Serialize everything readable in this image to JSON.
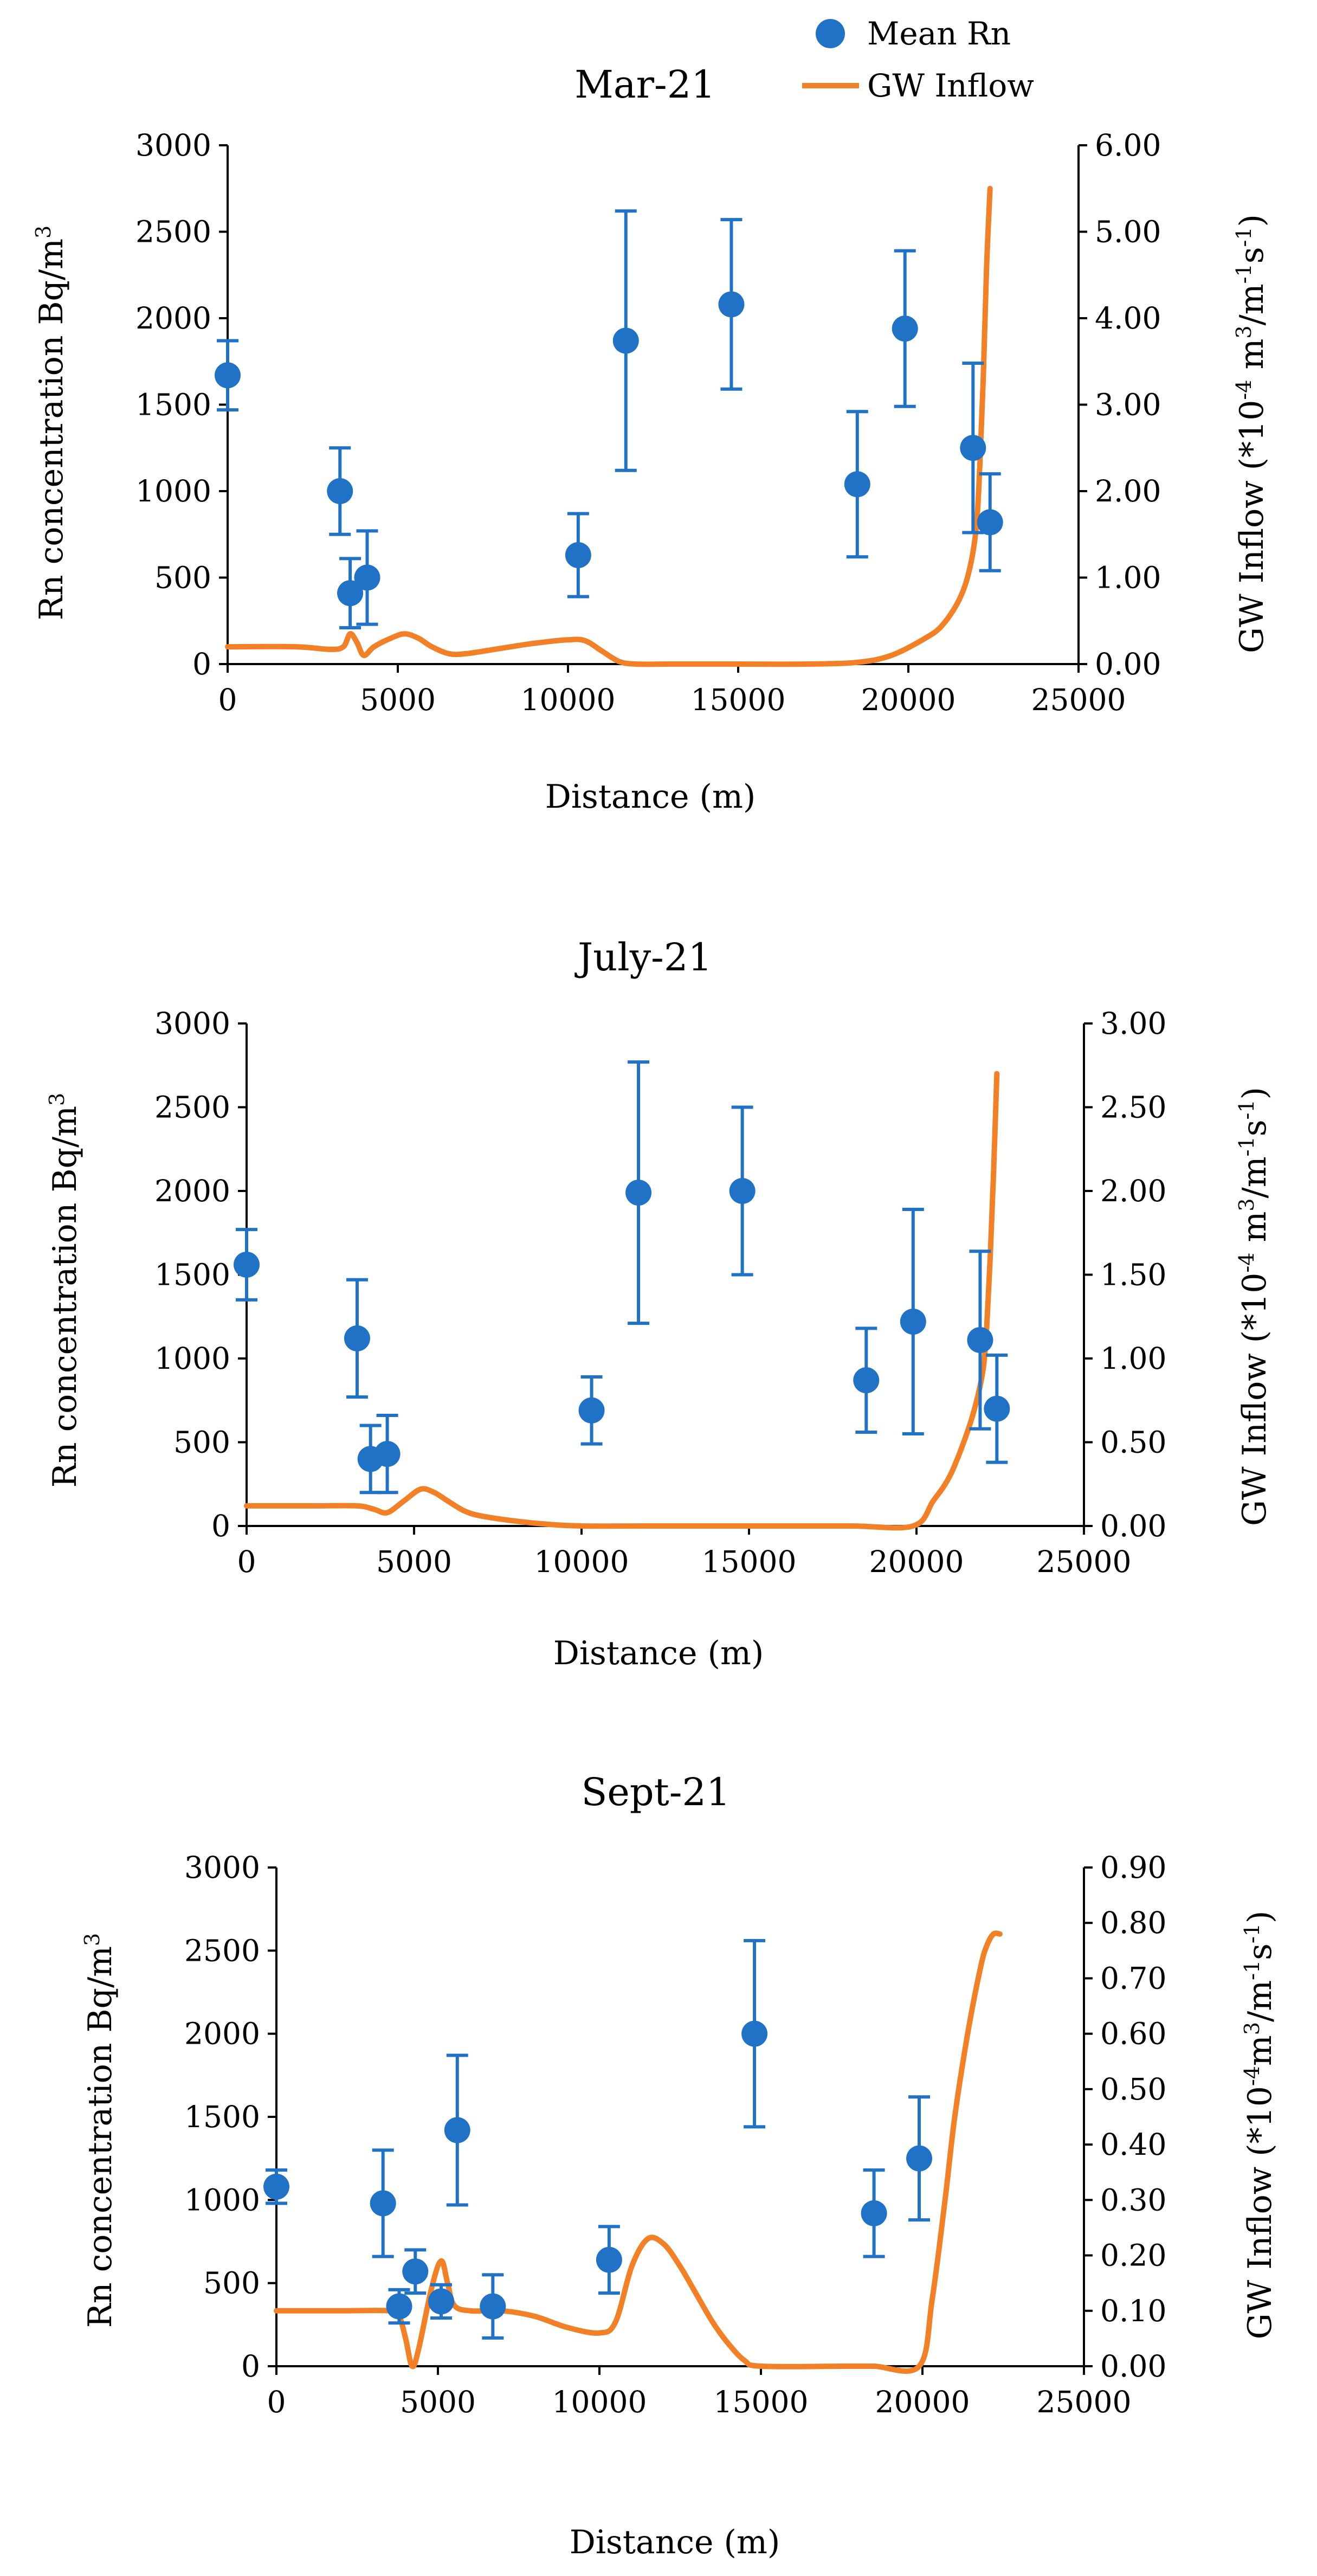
{
  "legend": {
    "mean_rn": "Mean Rn",
    "gw_inflow": "GW Inflow"
  },
  "colors": {
    "rn": "#1f72c6",
    "gw": "#f28027"
  },
  "chart_data": [
    {
      "type": "scatter",
      "title": "Mar-21",
      "xlabel": "Distance (m)",
      "ylabel": "Rn concentration Bq/m3",
      "y2label": "GW Inflow (*10-4 m3/m-1s-1)",
      "xlim": [
        0,
        25000
      ],
      "ylim": [
        0,
        3000
      ],
      "y2lim": [
        0,
        6
      ],
      "xticks": [
        "0",
        "5000",
        "10000",
        "15000",
        "20000",
        "25000"
      ],
      "yticks": [
        "0",
        "500",
        "1000",
        "1500",
        "2000",
        "2500",
        "3000"
      ],
      "y2ticks": [
        "0.00",
        "1.00",
        "2.00",
        "3.00",
        "4.00",
        "5.00",
        "6.00"
      ],
      "series": [
        {
          "name": "Mean Rn",
          "x": [
            0,
            3300,
            3600,
            4100,
            10300,
            11700,
            14800,
            18500,
            19900,
            21900,
            22400
          ],
          "y": [
            1670,
            1000,
            410,
            500,
            630,
            1870,
            2080,
            1040,
            1940,
            1250,
            820
          ],
          "err": [
            200,
            250,
            200,
            270,
            240,
            750,
            490,
            420,
            450,
            490,
            280
          ]
        },
        {
          "name": "GW Inflow",
          "axis": "y2",
          "x": [
            0,
            2000,
            3000,
            3400,
            3600,
            3800,
            4000,
            4300,
            4800,
            5200,
            5600,
            6000,
            6500,
            7000,
            8000,
            9000,
            10000,
            10500,
            11000,
            11500,
            12000,
            13000,
            15000,
            17000,
            18500,
            19500,
            20500,
            21000,
            21500,
            21800,
            22000,
            22100,
            22200,
            22300,
            22400
          ],
          "y": [
            0.2,
            0.2,
            0.17,
            0.2,
            0.35,
            0.25,
            0.1,
            0.2,
            0.3,
            0.35,
            0.3,
            0.2,
            0.12,
            0.12,
            0.18,
            0.24,
            0.28,
            0.27,
            0.15,
            0.03,
            0.0,
            0.0,
            0.0,
            0.0,
            0.02,
            0.1,
            0.3,
            0.45,
            0.75,
            1.1,
            1.6,
            2.3,
            3.3,
            4.6,
            5.5
          ]
        }
      ]
    },
    {
      "type": "scatter",
      "title": "July-21",
      "xlabel": "Distance (m)",
      "ylabel": "Rn concentration Bq/m3",
      "y2label": "GW Inflow (*10-4 m3/m-1s-1)",
      "xlim": [
        0,
        25000
      ],
      "ylim": [
        0,
        3000
      ],
      "y2lim": [
        0,
        3
      ],
      "xticks": [
        "0",
        "5000",
        "10000",
        "15000",
        "20000",
        "25000"
      ],
      "yticks": [
        "0",
        "500",
        "1000",
        "1500",
        "2000",
        "2500",
        "3000"
      ],
      "y2ticks": [
        "0.00",
        "0.50",
        "1.00",
        "1.50",
        "2.00",
        "2.50",
        "3.00"
      ],
      "series": [
        {
          "name": "Mean Rn",
          "x": [
            0,
            3300,
            3700,
            4200,
            10300,
            11700,
            14800,
            18500,
            19900,
            21900,
            22400
          ],
          "y": [
            1560,
            1120,
            400,
            430,
            690,
            1990,
            2000,
            870,
            1220,
            1110,
            700
          ],
          "err": [
            210,
            350,
            200,
            230,
            200,
            780,
            500,
            310,
            670,
            530,
            320
          ]
        },
        {
          "name": "GW Inflow",
          "axis": "y2",
          "x": [
            0,
            2000,
            3300,
            3800,
            4200,
            4700,
            5200,
            5600,
            6000,
            6500,
            7000,
            8000,
            9000,
            10000,
            12000,
            15000,
            18000,
            19900,
            20500,
            21000,
            21500,
            21800,
            22000,
            22100,
            22200,
            22300,
            22400
          ],
          "y": [
            0.12,
            0.12,
            0.12,
            0.1,
            0.08,
            0.15,
            0.22,
            0.2,
            0.15,
            0.09,
            0.06,
            0.03,
            0.01,
            0.0,
            0.0,
            0.0,
            0.0,
            0.0,
            0.15,
            0.3,
            0.55,
            0.75,
            0.95,
            1.2,
            1.6,
            2.1,
            2.7
          ]
        }
      ]
    },
    {
      "type": "scatter",
      "title": "Sept-21",
      "xlabel": "Distance (m)",
      "ylabel": "Rn concentration Bq/m3",
      "y2label": "GW Inflow (*10-4 m3/m-1s-1)",
      "xlim": [
        0,
        25000
      ],
      "ylim": [
        0,
        3000
      ],
      "y2lim": [
        0,
        0.9
      ],
      "xticks": [
        "0",
        "5000",
        "10000",
        "15000",
        "20000",
        "25000"
      ],
      "yticks": [
        "0",
        "500",
        "1000",
        "1500",
        "2000",
        "2500",
        "3000"
      ],
      "y2ticks": [
        "0.00",
        "0.10",
        "0.20",
        "0.30",
        "0.40",
        "0.50",
        "0.60",
        "0.70",
        "0.80",
        "0.90"
      ],
      "series": [
        {
          "name": "Mean Rn",
          "x": [
            0,
            3300,
            3800,
            4300,
            5100,
            5600,
            6700,
            10300,
            14800,
            18500,
            19900
          ],
          "y": [
            1080,
            980,
            360,
            570,
            390,
            1420,
            360,
            640,
            2000,
            920,
            1250
          ],
          "err": [
            100,
            320,
            100,
            130,
            100,
            450,
            190,
            200,
            560,
            260,
            370
          ]
        },
        {
          "name": "GW Inflow",
          "axis": "y2",
          "x": [
            0,
            2000,
            3500,
            3800,
            4000,
            4200,
            4400,
            4800,
            5100,
            5300,
            5500,
            6000,
            7000,
            8000,
            9000,
            10000,
            10500,
            11000,
            11500,
            12000,
            12500,
            13000,
            13500,
            14000,
            14500,
            15000,
            17500,
            18500,
            19900,
            20300,
            20700,
            21000,
            21400,
            21800,
            22000,
            22200,
            22400
          ],
          "y": [
            0.1,
            0.1,
            0.1,
            0.09,
            0.05,
            0.0,
            0.03,
            0.14,
            0.19,
            0.15,
            0.11,
            0.1,
            0.1,
            0.09,
            0.07,
            0.06,
            0.08,
            0.18,
            0.23,
            0.22,
            0.18,
            0.13,
            0.08,
            0.04,
            0.01,
            0.0,
            0.0,
            0.0,
            0.0,
            0.12,
            0.3,
            0.45,
            0.6,
            0.72,
            0.76,
            0.78,
            0.78
          ]
        }
      ]
    }
  ]
}
